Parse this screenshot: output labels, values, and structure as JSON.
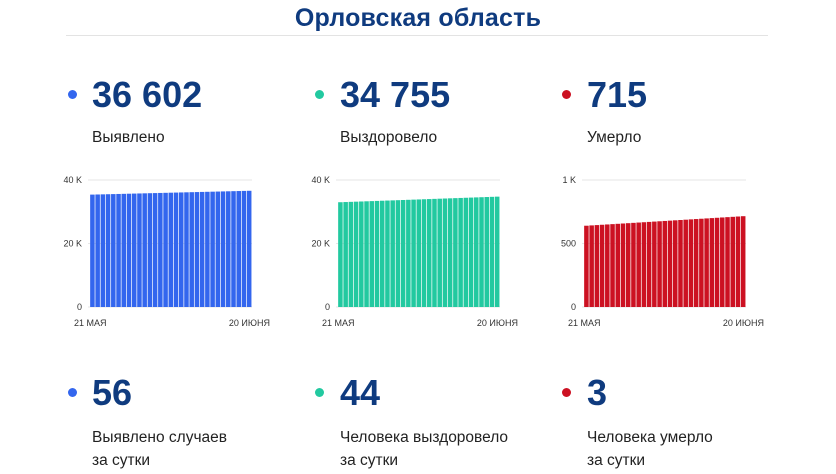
{
  "title": "Орловская область",
  "colors": {
    "blue": "#3366ee",
    "green": "#22c9a0",
    "red": "#cc1122",
    "title": "#0f3b7f"
  },
  "totals": [
    {
      "dot_color": "#3366ee",
      "value": "36 602",
      "label": "Выявлено"
    },
    {
      "dot_color": "#22c9a0",
      "value": "34 755",
      "label": "Выздоровело"
    },
    {
      "dot_color": "#cc1122",
      "value": "715",
      "label": "Умерло"
    }
  ],
  "daily": [
    {
      "dot_color": "#3366ee",
      "value": "56",
      "label_line1": "Выявлено случаев",
      "label_line2": "за сутки"
    },
    {
      "dot_color": "#22c9a0",
      "value": "44",
      "label_line1": "Человека выздоровело",
      "label_line2": "за сутки"
    },
    {
      "dot_color": "#cc1122",
      "value": "3",
      "label_line1": "Человека умерло",
      "label_line2": "за сутки"
    }
  ],
  "chart_data": [
    {
      "type": "bar",
      "color": "#3366ee",
      "x_start_label": "21 МАЯ",
      "x_end_label": "20 ИЮНЯ",
      "bar_count": 31,
      "first_value": 35400,
      "last_value": 36602,
      "ylim": [
        0,
        40000
      ],
      "y_ticks": [
        {
          "value": 0,
          "label": "0"
        },
        {
          "value": 20000,
          "label": "20 K"
        },
        {
          "value": 40000,
          "label": "40 K"
        }
      ],
      "grid": true
    },
    {
      "type": "bar",
      "color": "#22c9a0",
      "x_start_label": "21 МАЯ",
      "x_end_label": "20 ИЮНЯ",
      "bar_count": 31,
      "first_value": 33000,
      "last_value": 34755,
      "ylim": [
        0,
        40000
      ],
      "y_ticks": [
        {
          "value": 0,
          "label": "0"
        },
        {
          "value": 20000,
          "label": "20 K"
        },
        {
          "value": 40000,
          "label": "40 K"
        }
      ],
      "grid": true
    },
    {
      "type": "bar",
      "color": "#cc1122",
      "x_start_label": "21 МАЯ",
      "x_end_label": "20 ИЮНЯ",
      "bar_count": 31,
      "first_value": 640,
      "last_value": 715,
      "ylim": [
        0,
        1000
      ],
      "y_ticks": [
        {
          "value": 0,
          "label": "0"
        },
        {
          "value": 500,
          "label": "500"
        },
        {
          "value": 1000,
          "label": "1 K"
        }
      ],
      "grid": true
    }
  ]
}
